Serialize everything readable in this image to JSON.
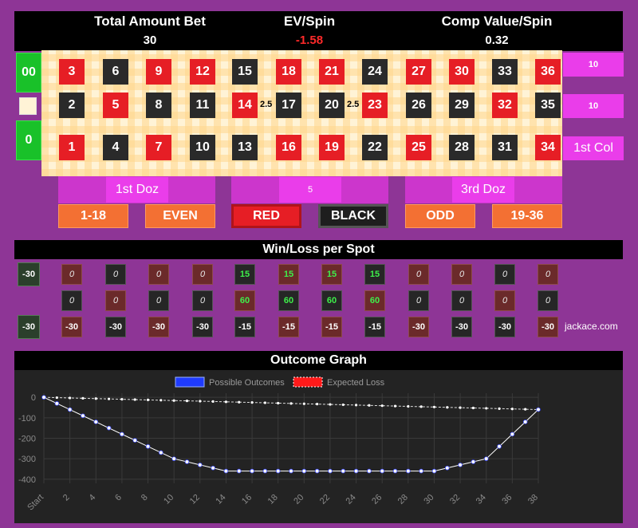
{
  "header": {
    "total_bet_label": "Total Amount Bet",
    "total_bet_value": "30",
    "ev_label": "EV/Spin",
    "ev_value": "-1.58",
    "comp_label": "Comp Value/Spin",
    "comp_value": "0.32"
  },
  "table": {
    "zero_top": "00",
    "zero_bottom": "0",
    "top_row": [
      "3",
      "6",
      "9",
      "12",
      "15",
      "18",
      "21",
      "24",
      "27",
      "30",
      "33",
      "36"
    ],
    "mid_row": [
      "2",
      "5",
      "8",
      "11",
      "14",
      "17",
      "20",
      "23",
      "26",
      "29",
      "32",
      "35"
    ],
    "bot_row": [
      "1",
      "4",
      "7",
      "10",
      "13",
      "16",
      "19",
      "22",
      "25",
      "28",
      "31",
      "34"
    ],
    "split_bets": [
      "2.5",
      "2.5"
    ],
    "columns": [
      "10",
      "10",
      "1st Col"
    ],
    "dozens": [
      "1st Doz",
      "5",
      "3rd Doz"
    ],
    "outside": [
      "1-18",
      "EVEN",
      "RED",
      "BLACK",
      "ODD",
      "19-36"
    ],
    "colors": {
      "red": "#e61e25",
      "black": "#2a2a2a",
      "green": "#19c129",
      "magenta": "#ea3dea",
      "orange": "#f37033"
    }
  },
  "winloss": {
    "title": "Win/Loss per Spot",
    "zero_top": "-30",
    "zero_bottom": "-30",
    "top_row": [
      "0",
      "0",
      "0",
      "0",
      "15",
      "15",
      "15",
      "15",
      "0",
      "0",
      "0",
      "0"
    ],
    "mid_row": [
      "0",
      "0",
      "0",
      "0",
      "60",
      "60",
      "60",
      "60",
      "0",
      "0",
      "0",
      "0"
    ],
    "bot_row": [
      "-30",
      "-30",
      "-30",
      "-30",
      "-15",
      "-15",
      "-15",
      "-15",
      "-30",
      "-30",
      "-30",
      "-30"
    ],
    "credit": "jackace.com"
  },
  "graph": {
    "title": "Outcome Graph",
    "legend_possible": "Possible Outcomes",
    "legend_expected": "Expected Loss"
  },
  "chart_data": {
    "type": "line",
    "x": [
      "Start",
      "1",
      "2",
      "3",
      "4",
      "5",
      "6",
      "7",
      "8",
      "9",
      "10",
      "11",
      "12",
      "13",
      "14",
      "15",
      "16",
      "17",
      "18",
      "19",
      "20",
      "21",
      "22",
      "23",
      "24",
      "25",
      "26",
      "27",
      "28",
      "29",
      "30",
      "31",
      "32",
      "33",
      "34",
      "35",
      "36",
      "37",
      "38"
    ],
    "xticks": [
      "Start",
      "2",
      "4",
      "6",
      "8",
      "10",
      "12",
      "14",
      "16",
      "18",
      "20",
      "22",
      "24",
      "26",
      "28",
      "30",
      "32",
      "34",
      "36",
      "38"
    ],
    "yticks": [
      "0",
      "-100",
      "-200",
      "-300",
      "-400"
    ],
    "ylim": [
      -420,
      20
    ],
    "series": [
      {
        "name": "Possible Outcomes",
        "color": "#1f3bff",
        "values": [
          0,
          -30,
          -60,
          -90,
          -120,
          -150,
          -180,
          -210,
          -240,
          -270,
          -300,
          -315,
          -330,
          -345,
          -360,
          -360,
          -360,
          -360,
          -360,
          -360,
          -360,
          -360,
          -360,
          -360,
          -360,
          -360,
          -360,
          -360,
          -360,
          -360,
          -360,
          -345,
          -330,
          -315,
          -300,
          -240,
          -180,
          -120,
          -60
        ]
      },
      {
        "name": "Expected Loss",
        "color": "#ff1a1a",
        "values": [
          0,
          -1.58,
          -3.16,
          -4.74,
          -6.32,
          -7.9,
          -9.48,
          -11.06,
          -12.64,
          -14.22,
          -15.8,
          -17.38,
          -18.96,
          -20.54,
          -22.12,
          -23.7,
          -25.28,
          -26.86,
          -28.44,
          -30.02,
          -31.6,
          -33.18,
          -34.76,
          -36.34,
          -37.92,
          -39.5,
          -41.08,
          -42.66,
          -44.24,
          -45.82,
          -47.4,
          -48.98,
          -50.56,
          -52.14,
          -53.72,
          -55.3,
          -56.88,
          -58.46,
          -60.04
        ]
      }
    ],
    "legend": "top-center",
    "grid": true
  }
}
